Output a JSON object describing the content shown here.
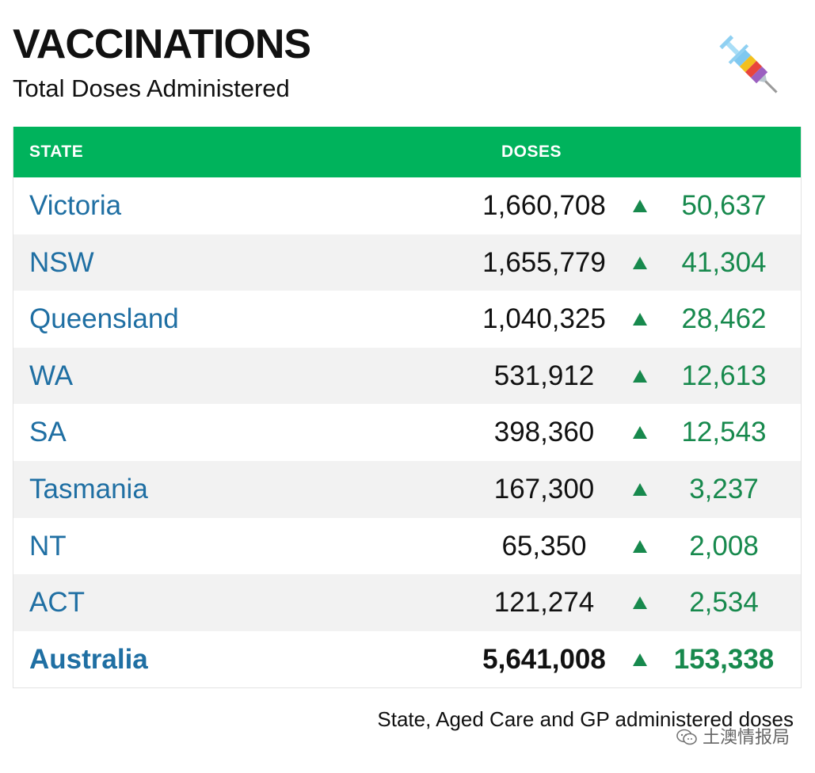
{
  "header": {
    "title": "VACCINATIONS",
    "subtitle": "Total Doses Administered",
    "icon": "syringe-icon"
  },
  "table": {
    "columns": {
      "state": "STATE",
      "doses": "DOSES"
    },
    "rows": [
      {
        "state": "Victoria",
        "doses": "1,660,708",
        "change": "50,637"
      },
      {
        "state": "NSW",
        "doses": "1,655,779",
        "change": "41,304"
      },
      {
        "state": "Queensland",
        "doses": "1,040,325",
        "change": "28,462"
      },
      {
        "state": "WA",
        "doses": "531,912",
        "change": "12,613"
      },
      {
        "state": "SA",
        "doses": "398,360",
        "change": "12,543"
      },
      {
        "state": "Tasmania",
        "doses": "167,300",
        "change": "3,237"
      },
      {
        "state": "NT",
        "doses": "65,350",
        "change": "2,008"
      },
      {
        "state": "ACT",
        "doses": "121,274",
        "change": "2,534"
      }
    ],
    "total": {
      "state": "Australia",
      "doses": "5,641,008",
      "change": "153,338"
    }
  },
  "footnote": "State, Aged Care and GP administered doses",
  "watermark": "土澳情报局",
  "colors": {
    "header_green": "#00b35c",
    "state_blue": "#1f6fa3",
    "increase_green": "#17894d",
    "row_alt": "#f2f2f2"
  }
}
